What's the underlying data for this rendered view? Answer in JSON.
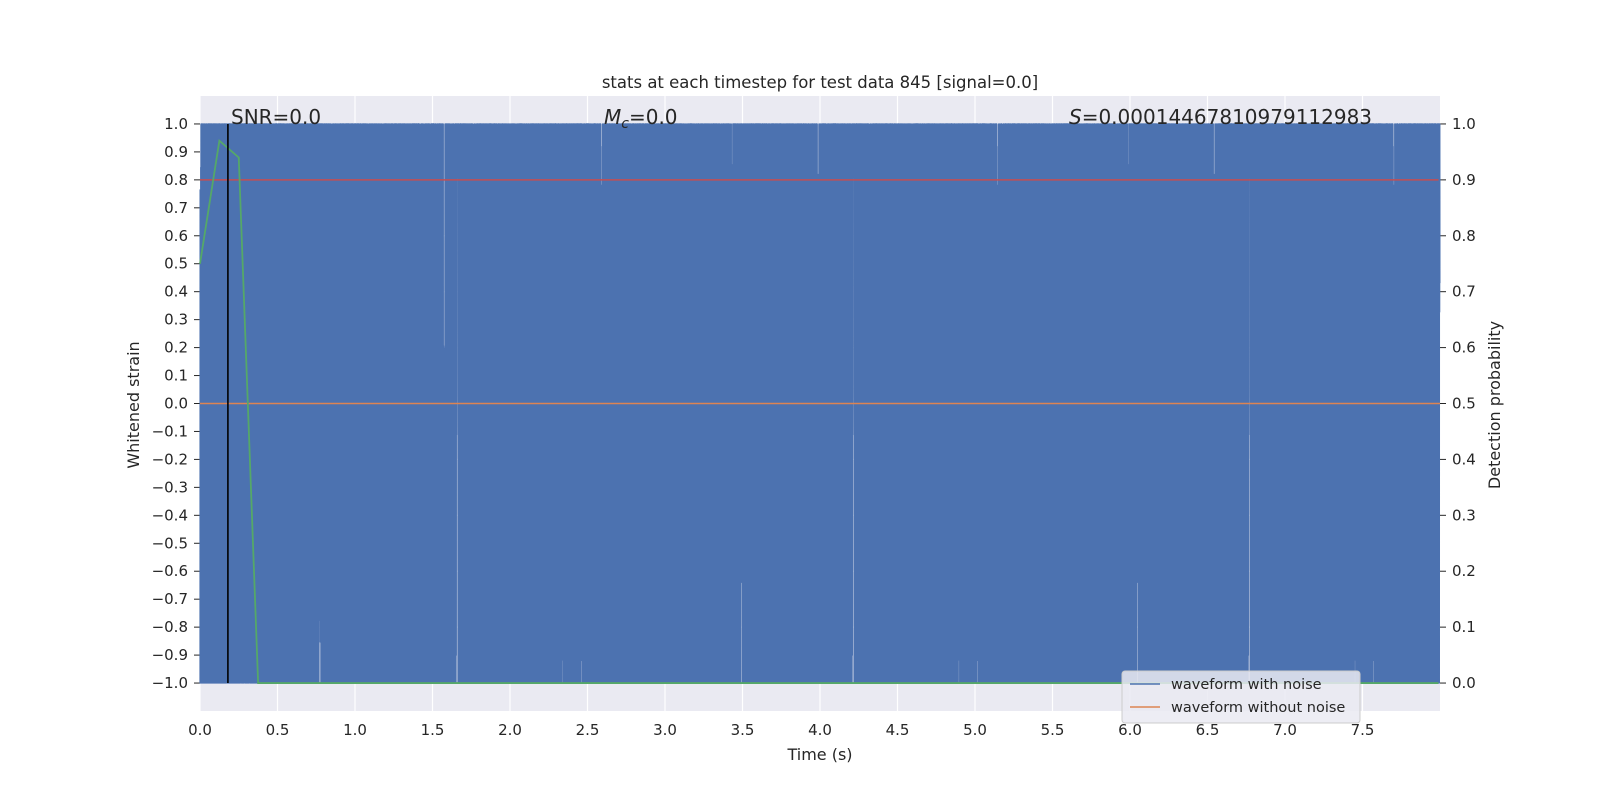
{
  "chart_data": {
    "type": "line",
    "title": "stats at each timestep for test data 845 [signal=0.0]",
    "xlabel": "Time (s)",
    "ylabel": "Whitened strain",
    "ylabel_right": "Detection probability",
    "xlim": [
      0.0,
      8.0
    ],
    "ylim": [
      -1.1,
      1.1
    ],
    "ylim_right": [
      -0.05,
      1.05
    ],
    "x_ticks": [
      0.0,
      0.5,
      1.0,
      1.5,
      2.0,
      2.5,
      3.0,
      3.5,
      4.0,
      4.5,
      5.0,
      5.5,
      6.0,
      6.5,
      7.0,
      7.5
    ],
    "x_tick_labels": [
      "0.0",
      "0.5",
      "1.0",
      "1.5",
      "2.0",
      "2.5",
      "3.0",
      "3.5",
      "4.0",
      "4.5",
      "5.0",
      "5.5",
      "6.0",
      "6.5",
      "7.0",
      "7.5"
    ],
    "y_ticks": [
      1.0,
      0.9,
      0.8,
      0.7,
      0.6,
      0.5,
      0.4,
      0.3,
      0.2,
      0.1,
      0.0,
      -0.1,
      -0.2,
      -0.3,
      -0.4,
      -0.5,
      -0.6,
      -0.7,
      -0.8,
      -0.9,
      -1.0
    ],
    "y_tick_labels": [
      "1.0",
      "0.9",
      "0.8",
      "0.7",
      "0.6",
      "0.5",
      "0.4",
      "0.3",
      "0.2",
      "0.1",
      "0.0",
      "−0.1",
      "−0.2",
      "−0.3",
      "−0.4",
      "−0.5",
      "−0.6",
      "−0.7",
      "−0.8",
      "−0.9",
      "−1.0"
    ],
    "y_right_ticks": [
      1.0,
      0.9,
      0.8,
      0.7,
      0.6,
      0.5,
      0.4,
      0.3,
      0.2,
      0.1,
      0.0
    ],
    "y_right_tick_labels": [
      "1.0",
      "0.9",
      "0.8",
      "0.7",
      "0.6",
      "0.5",
      "0.4",
      "0.3",
      "0.2",
      "0.1",
      "0.0"
    ],
    "grid": true,
    "legend_position": "bottom-right",
    "annotations": {
      "snr": "SNR=0.0",
      "mc_symbol": "M",
      "mc_sub": "c",
      "mc_value": "=0.0",
      "s_symbol": "S",
      "s_value": "=0.00014467810979112983"
    },
    "series": [
      {
        "name": "waveform with noise",
        "color": "#4c72b0",
        "axis": "left",
        "description": "whitened noise clipped to [-1, 1]",
        "sample_rate_hz": 2048,
        "duration_s": 8.0
      },
      {
        "name": "waveform without noise",
        "color": "#dd8452",
        "axis": "left",
        "x": [
          0.0,
          8.0
        ],
        "y": [
          0.0,
          0.0
        ]
      },
      {
        "color": "#55a868",
        "axis": "right",
        "x": [
          0.0,
          0.125,
          0.25,
          0.375,
          0.5,
          1.0,
          2.0,
          3.0,
          4.0,
          5.0,
          6.0,
          7.0,
          7.99
        ],
        "y": [
          0.75,
          0.97,
          0.94,
          0.0,
          0.0,
          0.0,
          0.0,
          0.0,
          0.0,
          0.0,
          0.0,
          0.0,
          0.0
        ]
      },
      {
        "color": "#c44e52",
        "axis": "right",
        "x": [
          0.0,
          7.99
        ],
        "y": [
          0.9,
          0.9
        ]
      }
    ],
    "vertical_line": {
      "x": 0.18,
      "color": "#000000"
    }
  }
}
